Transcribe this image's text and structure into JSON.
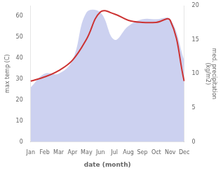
{
  "chart_data": {
    "type": "line",
    "xlabel": "date (month)",
    "ylabel": "max temp (C)",
    "y2label": "med. precipitation\n(kg/m2)",
    "categories": [
      "Jan",
      "Feb",
      "Mar",
      "Apr",
      "May",
      "Jun",
      "Jul",
      "Aug",
      "Sep",
      "Oct",
      "Nov",
      "Dec"
    ],
    "series": [
      {
        "type": "area",
        "color": "#b0b8e8",
        "axis": "y2",
        "values": [
          8,
          10,
          10,
          12,
          19,
          19,
          15,
          17,
          18,
          18,
          18,
          12
        ]
      },
      {
        "type": "line",
        "color": "#cc3333",
        "values": [
          29,
          31,
          34,
          39,
          49,
          62,
          61,
          58,
          57,
          57,
          58,
          29
        ]
      }
    ],
    "ylim": [
      0,
      65
    ],
    "yticks": [
      0,
      10,
      20,
      30,
      40,
      50,
      60
    ],
    "y2lim": [
      0,
      20
    ],
    "y2ticks": [
      0,
      5,
      10,
      15,
      20
    ],
    "grid": false
  }
}
